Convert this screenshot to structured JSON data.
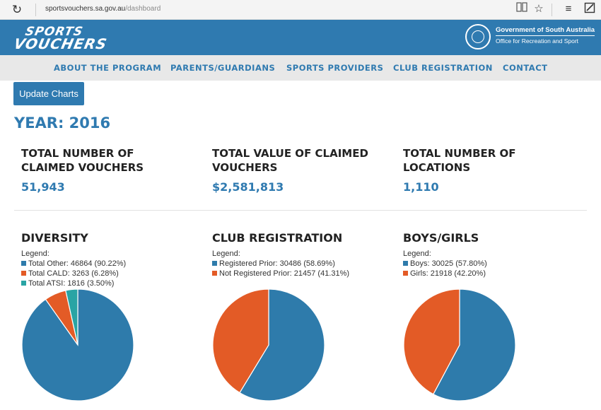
{
  "browser": {
    "url_host": "sportsvouchers.sa.gov.au",
    "url_path": "/dashboard",
    "icons": [
      "refresh-icon",
      "reading-view-icon",
      "favorite-star-icon",
      "hub-menu-icon",
      "web-note-icon"
    ]
  },
  "header": {
    "logo_line1": "SPORTS",
    "logo_line2": "VOUCHERS",
    "gov_line1": "Government of South Australia",
    "gov_line2": "Office for Recreation and Sport"
  },
  "nav": {
    "items": [
      "ABOUT THE PROGRAM",
      "PARENTS/GUARDIANS",
      "SPORTS PROVIDERS",
      "CLUB REGISTRATION",
      "CONTACT"
    ]
  },
  "update_button": "Update Charts",
  "year_label": "YEAR: 2016",
  "stats": [
    {
      "title_line1": "TOTAL NUMBER OF",
      "title_line2": "CLAIMED VOUCHERS",
      "value": "51,943"
    },
    {
      "title_line1": "TOTAL VALUE OF CLAIMED",
      "title_line2": "VOUCHERS",
      "value": "$2,581,813"
    },
    {
      "title_line1": "TOTAL NUMBER OF",
      "title_line2": "LOCATIONS",
      "value": "1,110"
    }
  ],
  "colors": {
    "primary": "#2f7ab0",
    "blue": "#2e7bab",
    "orange": "#e35b26",
    "teal": "#29a4a4"
  },
  "chart_data": [
    {
      "type": "pie",
      "title": "DIVERSITY",
      "legend_title": "Legend:",
      "slices": [
        {
          "label": "Total Other: 46864 (90.22%)",
          "value": 46864,
          "color": "#2e7bab"
        },
        {
          "label": "Total CALD: 3263 (6.28%)",
          "value": 3263,
          "color": "#e35b26"
        },
        {
          "label": "Total ATSI: 1816 (3.50%)",
          "value": 1816,
          "color": "#29a4a4"
        }
      ]
    },
    {
      "type": "pie",
      "title": "CLUB REGISTRATION",
      "legend_title": "Legend:",
      "slices": [
        {
          "label": "Registered Prior: 30486 (58.69%)",
          "value": 30486,
          "color": "#2e7bab"
        },
        {
          "label": "Not Registered Prior: 21457 (41.31%)",
          "value": 21457,
          "color": "#e35b26"
        }
      ]
    },
    {
      "type": "pie",
      "title": "BOYS/GIRLS",
      "legend_title": "Legend:",
      "slices": [
        {
          "label": "Boys: 30025 (57.80%)",
          "value": 30025,
          "color": "#2e7bab"
        },
        {
          "label": "Girls: 21918 (42.20%)",
          "value": 21918,
          "color": "#e35b26"
        }
      ]
    }
  ]
}
